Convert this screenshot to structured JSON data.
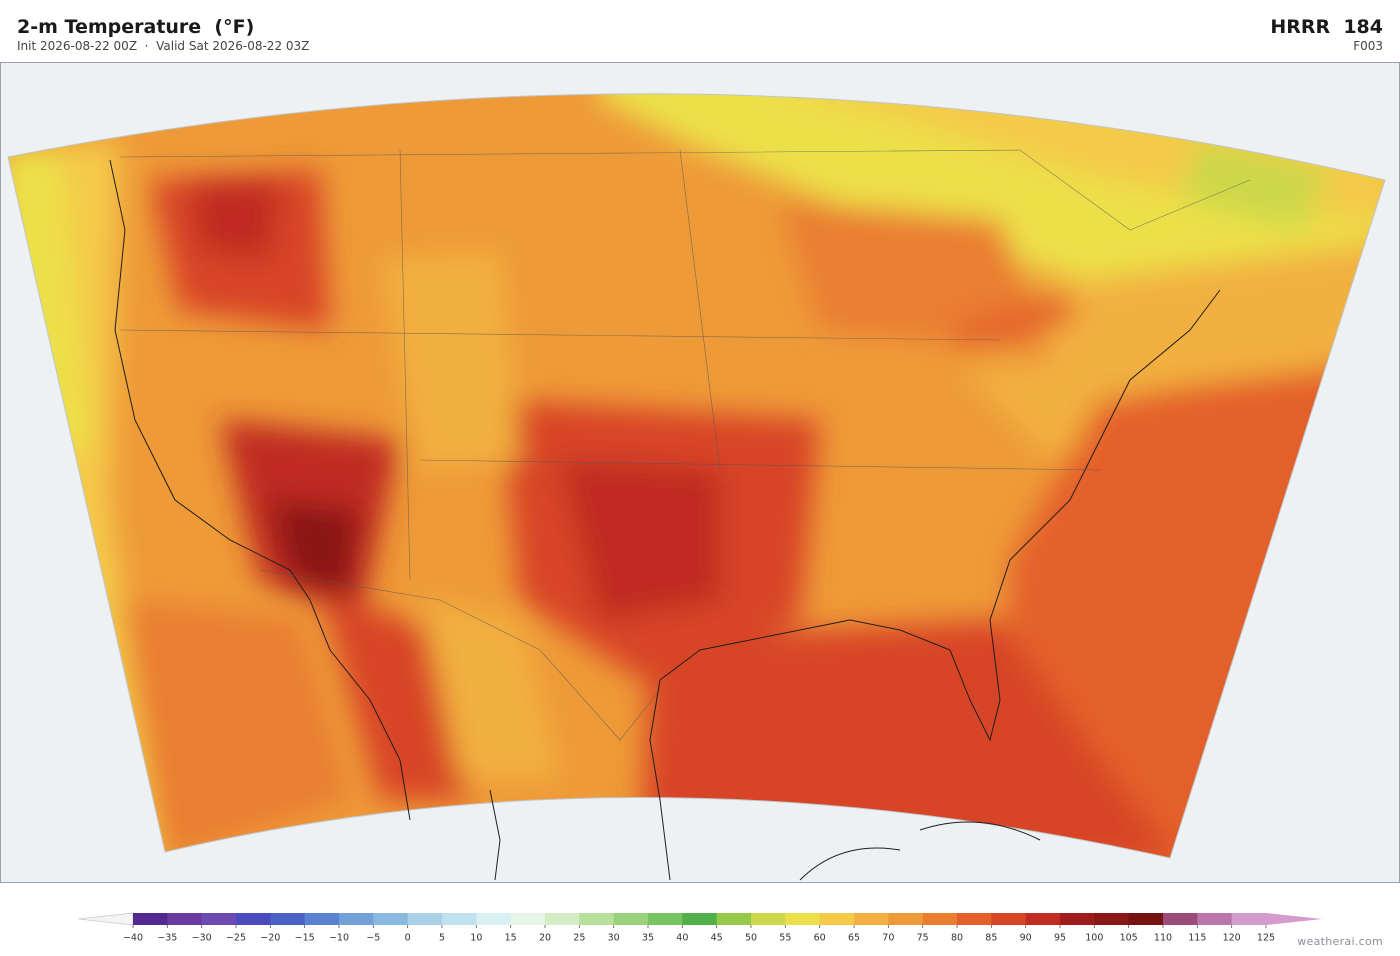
{
  "header": {
    "title": "2-m Temperature  (°F)",
    "subtitle": "Init 2026-08-22 00Z  ·  Valid Sat 2026-08-22 03Z",
    "model": "HRRR  184",
    "forecast_hour": "F003"
  },
  "colorbar": {
    "ticks": [
      {
        "value": -40,
        "label": "−40"
      },
      {
        "value": -35,
        "label": "−35"
      },
      {
        "value": -30,
        "label": "−30"
      },
      {
        "value": -25,
        "label": "−25"
      },
      {
        "value": -20,
        "label": "−20"
      },
      {
        "value": -15,
        "label": "−15"
      },
      {
        "value": -10,
        "label": "−10"
      },
      {
        "value": -5,
        "label": "−5"
      },
      0,
      5,
      10,
      15,
      20,
      25,
      30,
      35,
      40,
      45,
      50,
      55,
      60,
      65,
      70,
      75,
      80,
      85,
      90,
      95,
      100,
      105,
      110,
      115,
      120,
      125
    ],
    "colors": [
      "#52298f",
      "#6a3a9e",
      "#6b4bb0",
      "#4a4bbf",
      "#4a62c6",
      "#5a82d0",
      "#72a0d8",
      "#8bb8de",
      "#a8d0e6",
      "#c0e2ee",
      "#d8f0f2",
      "#e6f6e6",
      "#d4ecc4",
      "#b8e09a",
      "#98d27a",
      "#78c462",
      "#52b04a",
      "#96c84a",
      "#ccd84a",
      "#ece04a",
      "#f4ca48",
      "#f2b040",
      "#ee9a38",
      "#ea7e30",
      "#e4602a",
      "#d84426",
      "#c02c22",
      "#a01c1c",
      "#8a1616",
      "#761212",
      "#9c4a78",
      "#b876aa",
      "#d49ccc"
    ],
    "under_color": "#f4f4f4",
    "over_color": "#d49ccc"
  },
  "footer": {
    "credit": "weatherai.com"
  }
}
